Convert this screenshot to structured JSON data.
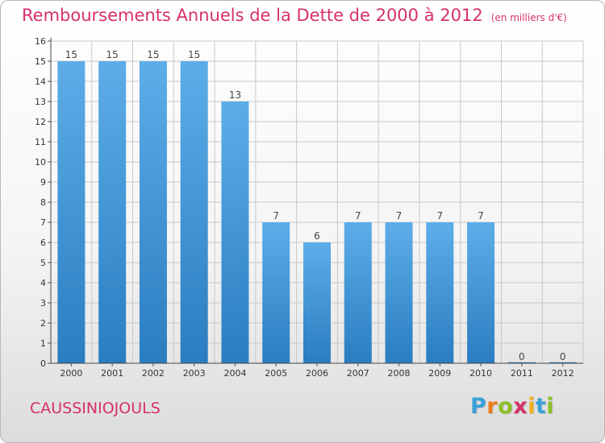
{
  "title": "Remboursements Annuels de la Dette de 2000 à 2012",
  "unit": "(en milliers d'€)",
  "commune": "CAUSSINIOJOULS",
  "logo": {
    "letters": [
      {
        "ch": "P",
        "color": "#3aa0d8"
      },
      {
        "ch": "r",
        "color": "#ef7d1a"
      },
      {
        "ch": "o",
        "color": "#8cbf26"
      },
      {
        "ch": "x",
        "color": "#d6306e"
      },
      {
        "ch": "i",
        "color": "#f2b01e"
      },
      {
        "ch": "t",
        "color": "#3aa0d8"
      },
      {
        "ch": "i",
        "color": "#8cbf26"
      }
    ]
  },
  "colors": {
    "bar_light": "#5dade9",
    "bar_dark": "#2a7dc0",
    "grid": "#c8c8c8"
  },
  "chart_data": {
    "type": "bar",
    "categories": [
      "2000",
      "2001",
      "2002",
      "2003",
      "2004",
      "2005",
      "2006",
      "2007",
      "2008",
      "2009",
      "2010",
      "2011",
      "2012"
    ],
    "values": [
      15,
      15,
      15,
      15,
      13,
      7,
      6,
      7,
      7,
      7,
      7,
      0,
      0
    ],
    "data_labels": [
      "15",
      "15",
      "15",
      "15",
      "13",
      "7",
      "6",
      "7",
      "7",
      "7",
      "7",
      "0",
      "0"
    ],
    "yticks": [
      "0",
      "1",
      "2",
      "3",
      "4",
      "5",
      "6",
      "7",
      "8",
      "9",
      "10",
      "11",
      "12",
      "13",
      "14",
      "15",
      "16"
    ],
    "ylim": [
      0,
      16
    ],
    "grid": true
  }
}
